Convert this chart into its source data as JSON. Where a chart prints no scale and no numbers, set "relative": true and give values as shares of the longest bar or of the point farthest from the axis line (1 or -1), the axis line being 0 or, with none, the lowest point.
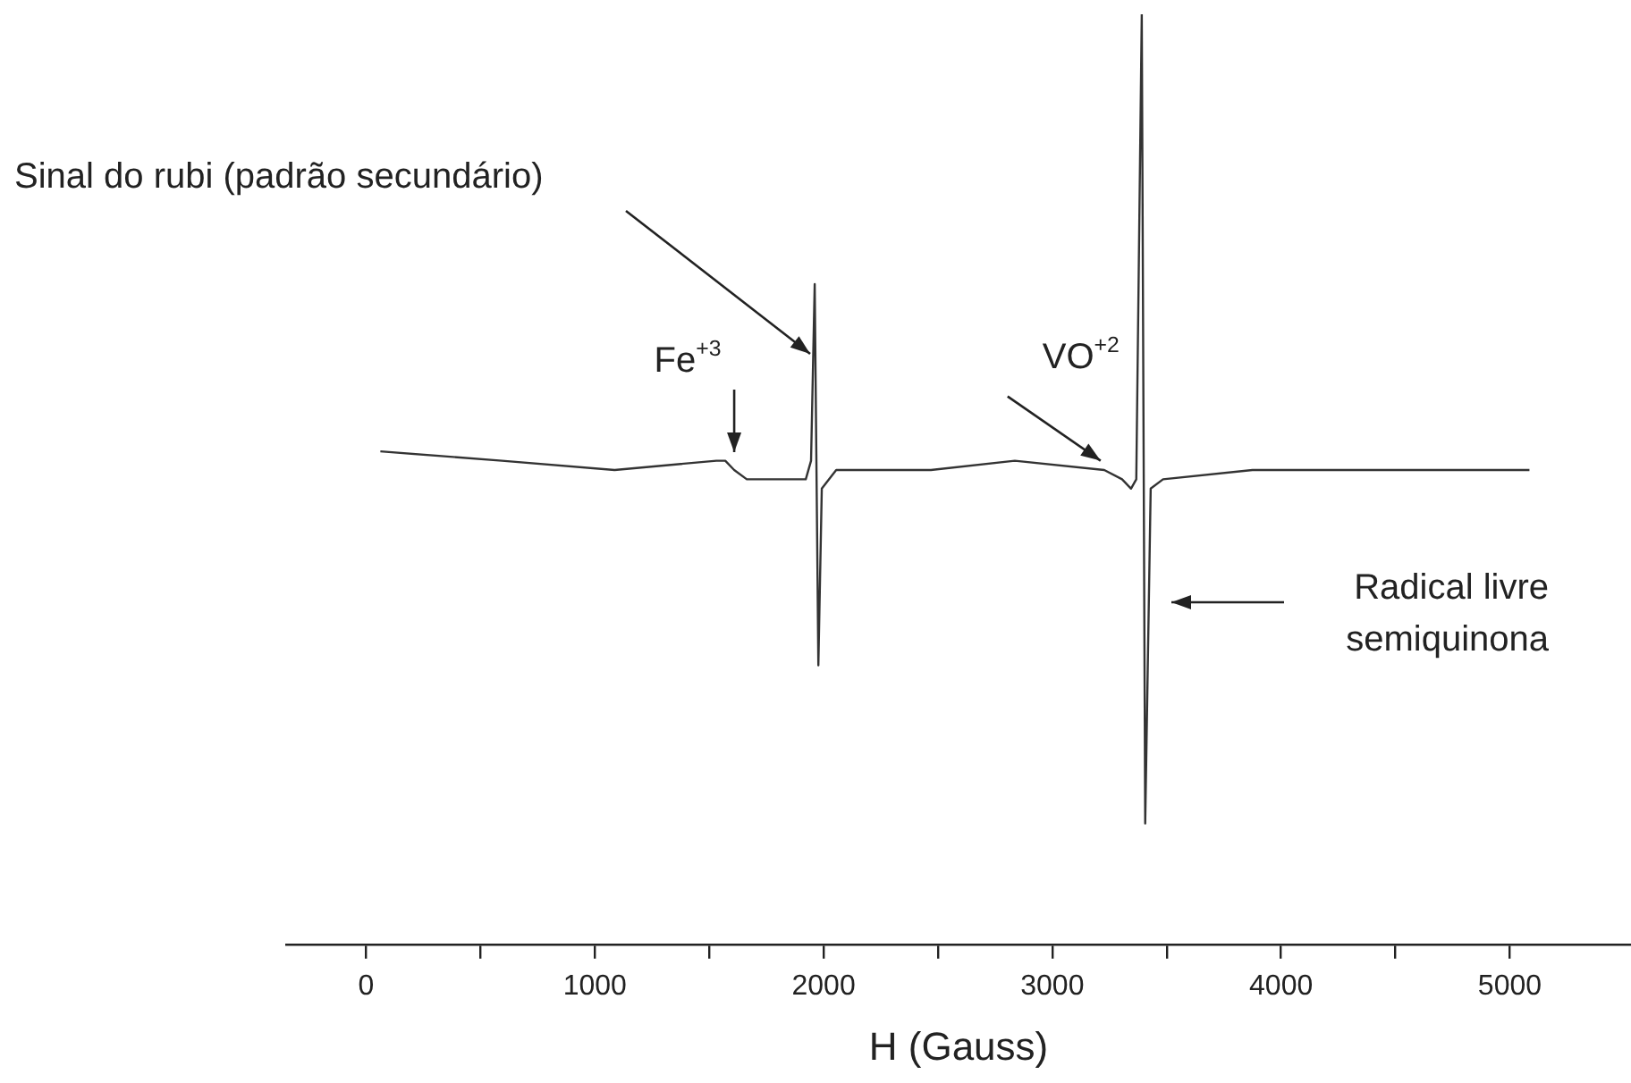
{
  "chart_data": {
    "type": "line",
    "xlabel": "H (Gauss)",
    "relative": true,
    "tick_labels": "x",
    "grid": false,
    "legend": false,
    "marker": "none",
    "xlim": [
      -350,
      5530
    ],
    "xticks": [
      0,
      {
        "value": 500,
        "label": null
      },
      1000,
      {
        "value": 1500,
        "label": null
      },
      2000,
      {
        "value": 2500,
        "label": null
      },
      3000,
      {
        "value": 3500,
        "label": null
      },
      4000,
      {
        "value": 4500,
        "label": null
      },
      5000
    ],
    "x": [
      62,
      594,
      1086,
      1531,
      1570,
      1609,
      1664,
      1789,
      1922,
      1945,
      1961,
      1977,
      1992,
      2055,
      2469,
      2836,
      3227,
      3305,
      3344,
      3367,
      3391,
      3406,
      3430,
      3484,
      3875,
      4656,
      5086
    ],
    "series": [
      {
        "color": "#333333",
        "values": [
          0.53,
          0.52,
          0.51,
          0.52,
          0.52,
          0.51,
          0.5,
          0.5,
          0.5,
          0.52,
          0.71,
          0.3,
          0.49,
          0.51,
          0.51,
          0.52,
          0.51,
          0.5,
          0.49,
          0.5,
          1,
          0.13,
          0.49,
          0.5,
          0.51,
          0.51,
          0.51
        ]
      }
    ],
    "annotations": [
      "Sinal do rubi (padrão secundário)",
      {
        "text": "Fe$^{+3}$",
        "x": 1609,
        "y": 0.51
      },
      {
        "text": "VO$^{+2}$",
        "x": 3211,
        "y": 0.52
      },
      "Radical livre\nsemiquinona"
    ]
  }
}
